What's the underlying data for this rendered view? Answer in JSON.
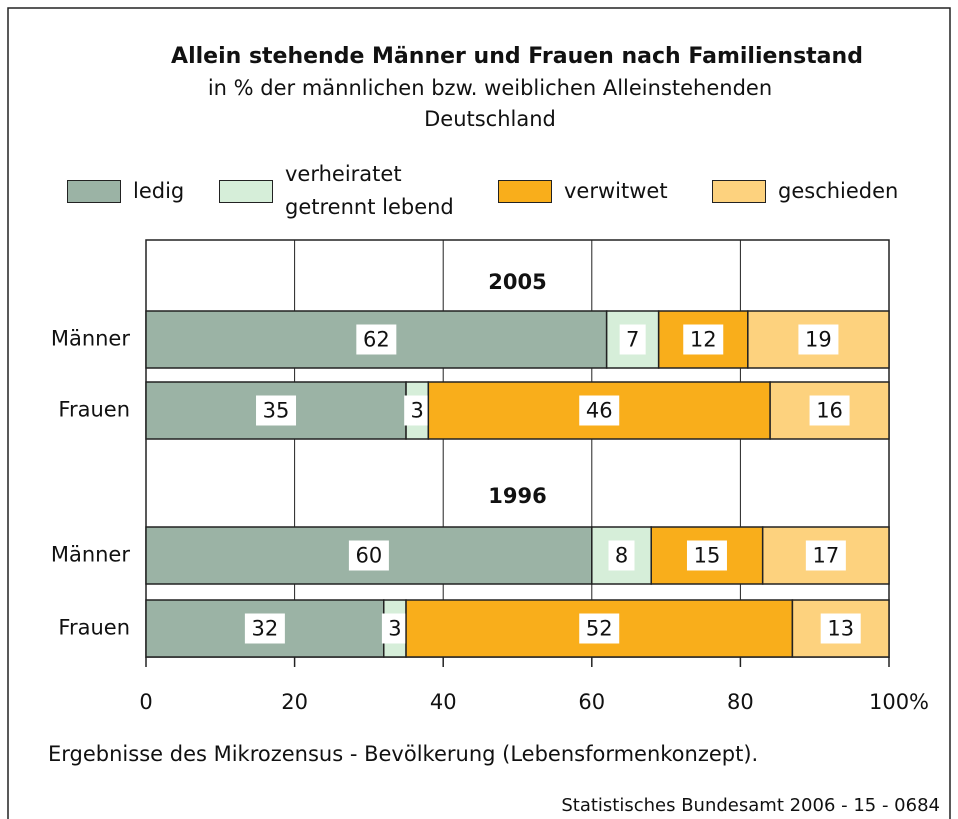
{
  "chart_data": {
    "type": "bar",
    "orientation": "horizontal",
    "stacked": true,
    "title": "Allein stehende Männer und Frauen nach Familienstand",
    "subtitle": "in % der männlichen bzw. weiblichen Alleinstehenden",
    "region": "Deutschland",
    "category_groups": [
      "2005",
      "1996"
    ],
    "categories": [
      "Männer",
      "Frauen",
      "Männer",
      "Frauen"
    ],
    "series": [
      {
        "name": "ledig",
        "color": "#9bb3a5",
        "values": [
          62,
          35,
          60,
          32
        ]
      },
      {
        "name": "verheiratet getrennt lebend",
        "color": "#d6eed9",
        "values": [
          7,
          3,
          8,
          3
        ]
      },
      {
        "name": "verwitwet",
        "color": "#f9ae1b",
        "values": [
          12,
          46,
          15,
          52
        ]
      },
      {
        "name": "geschieden",
        "color": "#fdd27e",
        "values": [
          19,
          16,
          17,
          13
        ]
      }
    ],
    "xlim": [
      0,
      100
    ],
    "xticks": [
      0,
      20,
      40,
      60,
      80,
      {
        "value": 100,
        "label": "100%"
      }
    ],
    "grid": true,
    "note": "Ergebnisse des Mikrozensus - Bevölkerung (Lebensformenkonzept).",
    "source": "Statistisches Bundesamt 2006 - 15 - 0684"
  }
}
